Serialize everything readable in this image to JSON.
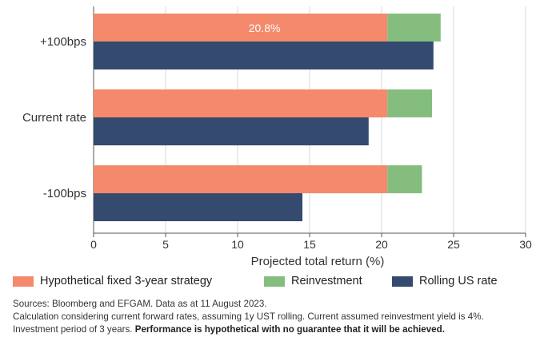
{
  "chart_data": {
    "type": "bar",
    "orientation": "horizontal",
    "stacked": true,
    "categories": [
      "+100bps",
      "Current rate",
      "-100bps"
    ],
    "series": [
      {
        "name": "Hypothetical fixed 3-year strategy",
        "color": "#F4896B",
        "values": [
          20.4,
          20.4,
          20.4
        ],
        "group": "strategy"
      },
      {
        "name": "Reinvestment",
        "color": "#84BD7E",
        "values": [
          3.7,
          3.1,
          2.4
        ],
        "group": "strategy"
      },
      {
        "name": "Rolling US rate",
        "color": "#344A6E",
        "values": [
          23.6,
          19.1,
          14.5
        ],
        "group": "rolling"
      }
    ],
    "data_label": "20.8%",
    "xlabel": "Projected total return (%)",
    "xticks": [
      "0",
      "5",
      "10",
      "15",
      "20",
      "25",
      "30"
    ],
    "xlim": [
      0,
      30
    ],
    "grid": true,
    "legend_placement": "bottom"
  },
  "legend": [
    {
      "label": "Hypothetical fixed 3-year strategy",
      "color": "#F4896B"
    },
    {
      "label": "Reinvestment",
      "color": "#84BD7E"
    },
    {
      "label": "Rolling US rate",
      "color": "#344A6E"
    }
  ],
  "footer": {
    "line1": "Sources: Bloomberg and EFGAM. Data as at 11 August 2023.",
    "line2": "Calculation considering current forward rates, assuming 1y UST rolling. Current assumed reinvestment yield is 4%.",
    "line3_plain": "Investment period of 3 years. ",
    "line3_bold": "Performance is hypothetical with no guarantee that it will be achieved."
  }
}
